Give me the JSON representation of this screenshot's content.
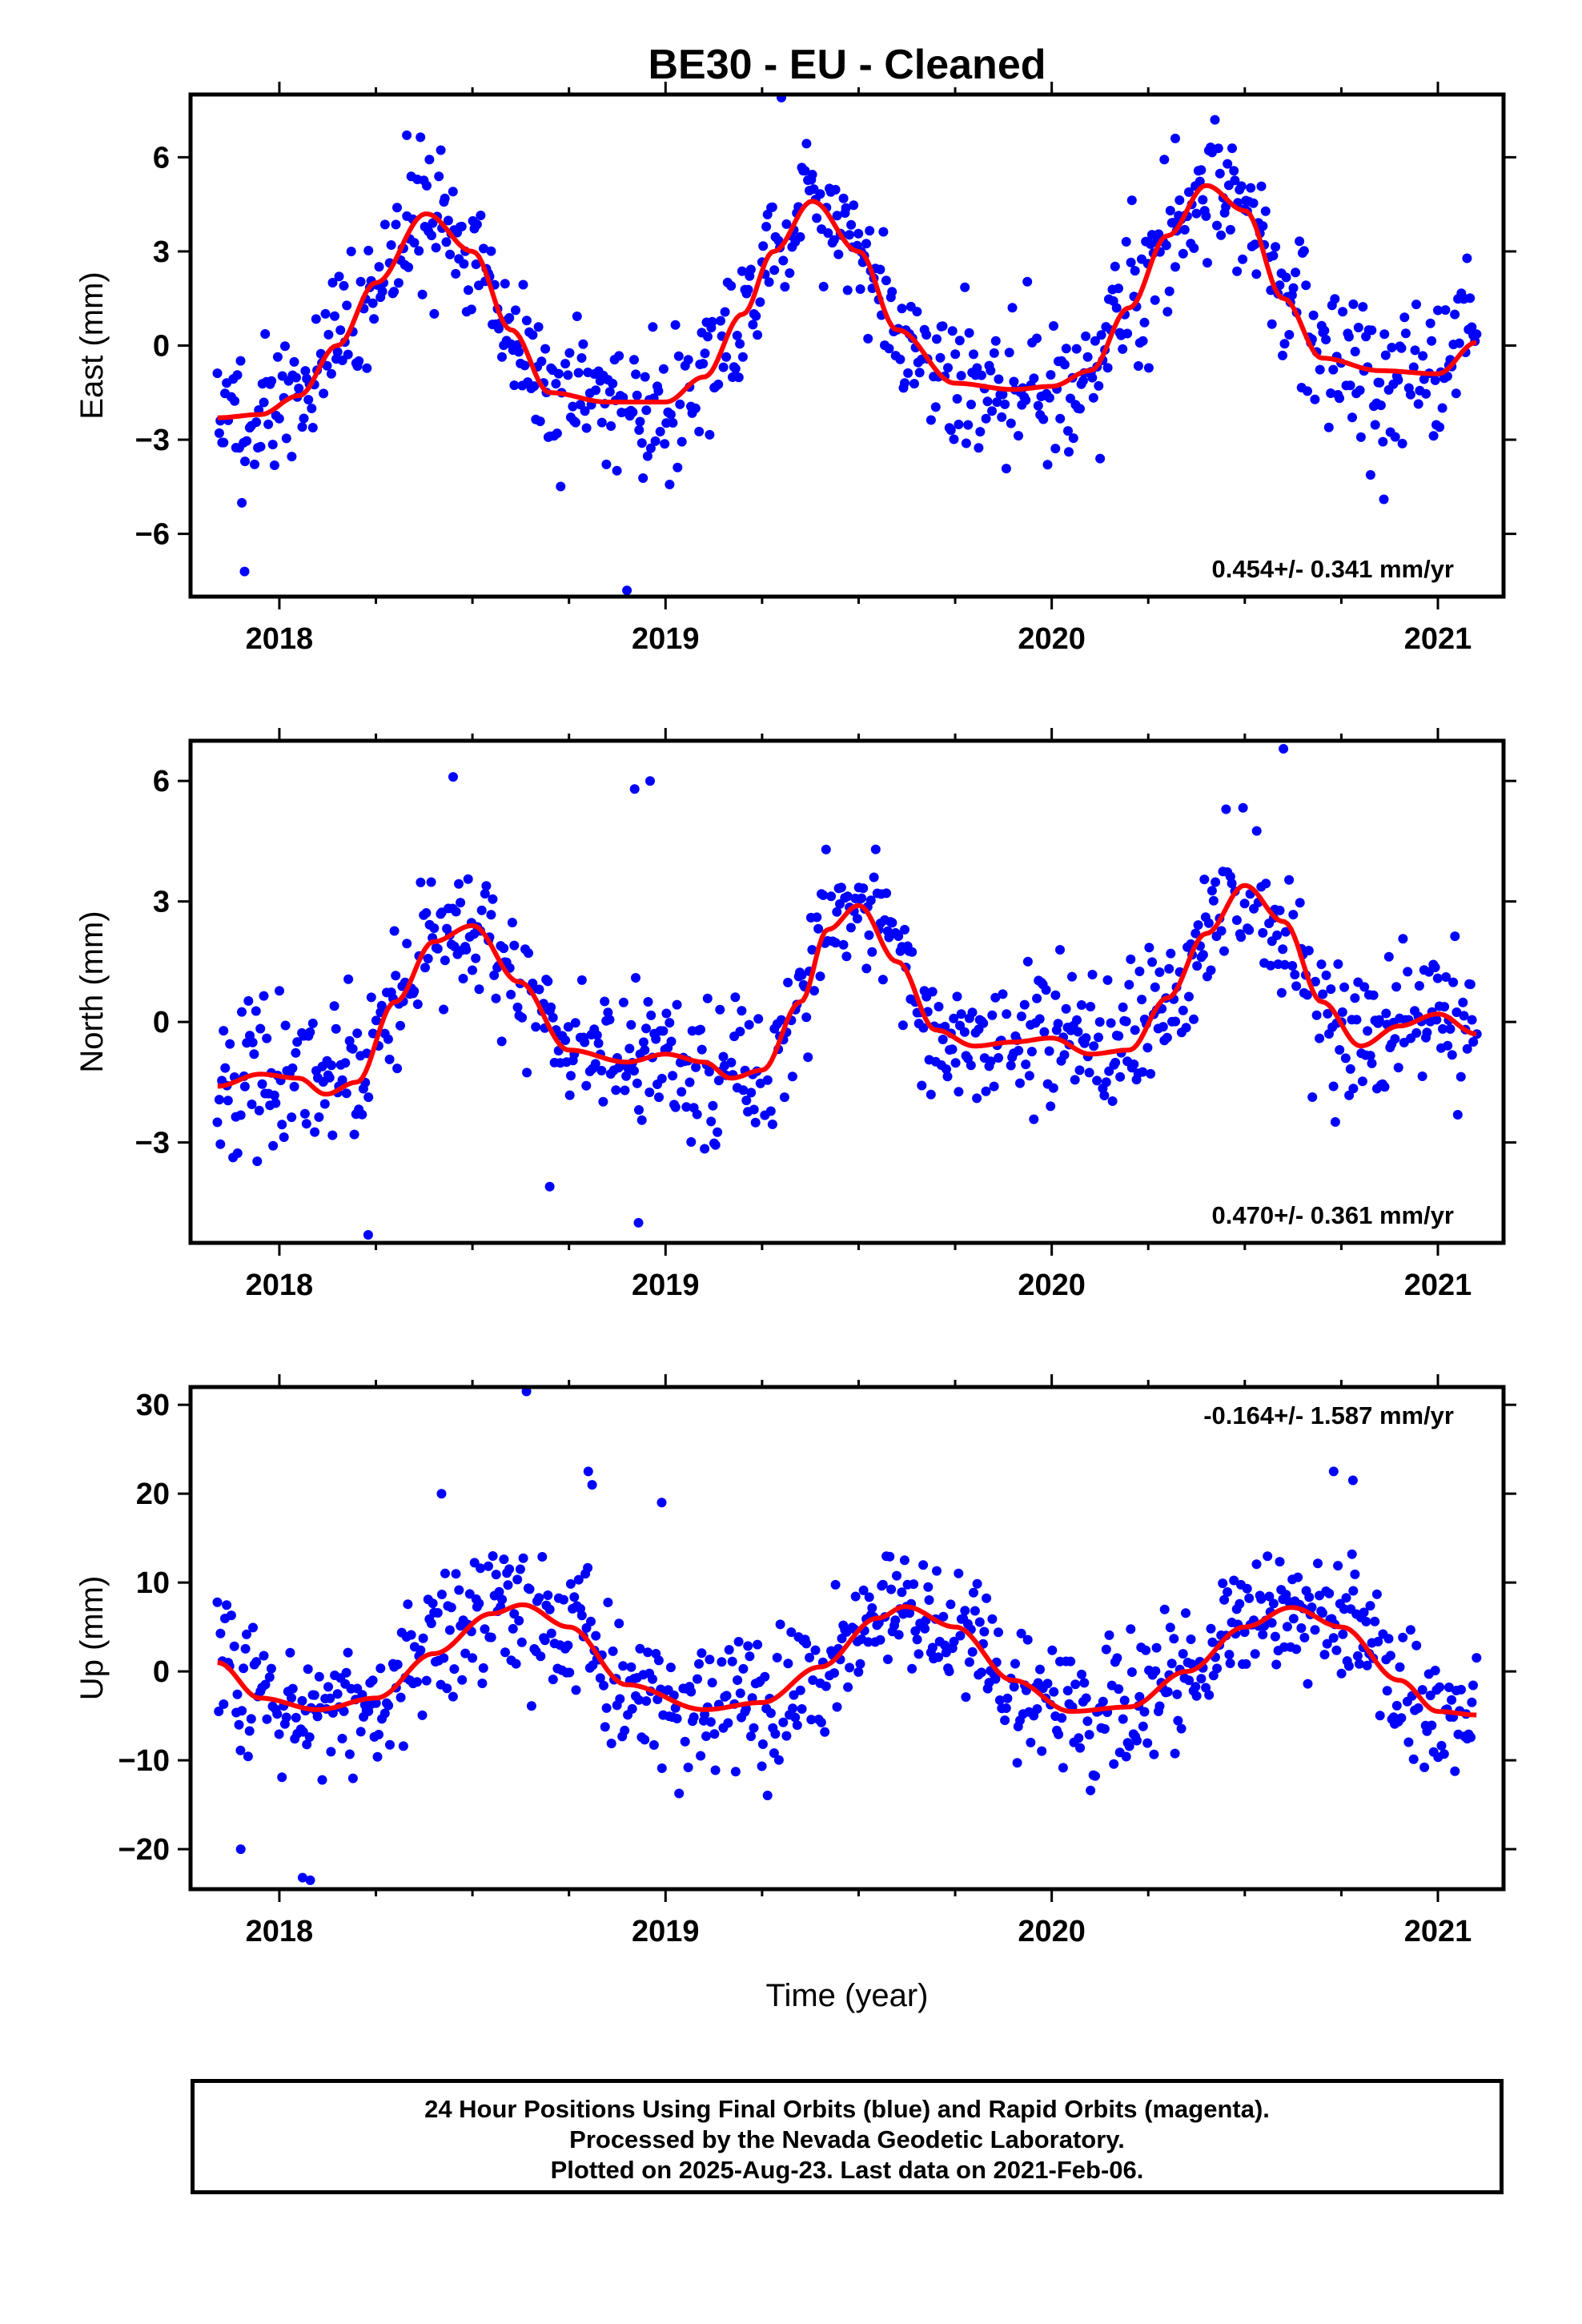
{
  "title": "BE30  - EU - Cleaned",
  "xlabel": "Time (year)",
  "footer": {
    "line1": "24 Hour Positions Using Final Orbits (blue) and Rapid Orbits (magenta).",
    "line2": "Processed by the Nevada Geodetic Laboratory.",
    "line3": "Plotted on 2025-Aug-23. Last data on 2021-Feb-06."
  },
  "colors": {
    "final_orbits": "#0000ff",
    "fit": "#ff0000",
    "axis": "#000000"
  },
  "chart_data": [
    {
      "type": "scatter",
      "ylabel": "East (mm)",
      "xlim": [
        2017.77,
        2021.17
      ],
      "ylim": [
        -8,
        8
      ],
      "xticks": [
        2018,
        2019,
        2020,
        2021
      ],
      "yticks": [
        -6,
        -3,
        0,
        3,
        6
      ],
      "rate_text": "0.454+/- 0.341 mm/yr",
      "rate_position": "bottom-right",
      "data_start": 2017.84,
      "data_end": 2021.1,
      "fit": {
        "x": [
          2017.84,
          2017.95,
          2018.05,
          2018.15,
          2018.25,
          2018.38,
          2018.5,
          2018.6,
          2018.7,
          2018.85,
          2019.0,
          2019.1,
          2019.2,
          2019.28,
          2019.38,
          2019.5,
          2019.6,
          2019.75,
          2019.9,
          2020.0,
          2020.1,
          2020.2,
          2020.3,
          2020.4,
          2020.5,
          2020.6,
          2020.7,
          2020.85,
          2021.0,
          2021.1
        ],
        "y": [
          -2.3,
          -2.2,
          -1.6,
          0.0,
          2.0,
          4.2,
          3.0,
          0.5,
          -1.5,
          -1.8,
          -1.8,
          -1.0,
          1.0,
          3.0,
          4.6,
          3.0,
          0.5,
          -1.2,
          -1.4,
          -1.3,
          -0.8,
          1.2,
          3.5,
          5.1,
          4.3,
          1.5,
          -0.4,
          -0.8,
          -0.9,
          0.1
        ]
      },
      "scatter_seed": 11,
      "scatter_noise_mm": 1.1,
      "outliers": {
        "x": [
          2017.91,
          2018.33,
          2019.3,
          2018.9,
          2020.86,
          2020.32
        ],
        "y": [
          -7.2,
          6.7,
          7.9,
          -7.8,
          -4.9,
          6.6
        ]
      }
    },
    {
      "type": "scatter",
      "ylabel": "North (mm)",
      "xlim": [
        2017.77,
        2021.17
      ],
      "ylim": [
        -5.5,
        7.0
      ],
      "xticks": [
        2018,
        2019,
        2020,
        2021
      ],
      "yticks": [
        -3,
        0,
        3,
        6
      ],
      "rate_text": "0.470+/- 0.361 mm/yr",
      "rate_position": "bottom-right",
      "data_start": 2017.84,
      "data_end": 2021.1,
      "fit": {
        "x": [
          2017.84,
          2017.95,
          2018.05,
          2018.12,
          2018.2,
          2018.3,
          2018.4,
          2018.5,
          2018.62,
          2018.75,
          2018.9,
          2019.0,
          2019.1,
          2019.17,
          2019.25,
          2019.35,
          2019.42,
          2019.5,
          2019.6,
          2019.7,
          2019.8,
          2019.9,
          2020.0,
          2020.1,
          2020.2,
          2020.3,
          2020.4,
          2020.5,
          2020.6,
          2020.7,
          2020.8,
          2020.9,
          2021.0,
          2021.1
        ],
        "y": [
          -1.6,
          -1.3,
          -1.4,
          -1.8,
          -1.5,
          0.5,
          2.0,
          2.4,
          1.0,
          -0.7,
          -1.0,
          -0.8,
          -1.0,
          -1.4,
          -1.2,
          0.5,
          2.3,
          2.9,
          1.5,
          -0.2,
          -0.6,
          -0.5,
          -0.4,
          -0.8,
          -0.7,
          0.6,
          2.2,
          3.4,
          2.5,
          0.5,
          -0.6,
          -0.1,
          0.2,
          -0.3
        ]
      },
      "scatter_seed": 23,
      "scatter_noise_mm": 0.85,
      "outliers": {
        "x": [
          2018.23,
          2018.92,
          2018.96,
          2018.45,
          2020.6,
          2018.93,
          2018.7
        ],
        "y": [
          -5.3,
          5.8,
          6.0,
          6.1,
          6.8,
          -5.0,
          -4.1
        ]
      }
    },
    {
      "type": "scatter",
      "ylabel": "Up (mm)",
      "xlim": [
        2017.77,
        2021.17
      ],
      "ylim": [
        -24.5,
        32
      ],
      "xticks": [
        2018,
        2019,
        2020,
        2021
      ],
      "yticks": [
        -20,
        -10,
        0,
        10,
        20,
        30
      ],
      "rate_text": "-0.164+/- 1.587 mm/yr",
      "rate_position": "top-right",
      "data_start": 2017.84,
      "data_end": 2021.1,
      "fit": {
        "x": [
          2017.84,
          2017.95,
          2018.1,
          2018.25,
          2018.4,
          2018.55,
          2018.63,
          2018.75,
          2018.9,
          2019.1,
          2019.25,
          2019.4,
          2019.55,
          2019.62,
          2019.75,
          2019.9,
          2020.05,
          2020.2,
          2020.35,
          2020.5,
          2020.62,
          2020.75,
          2020.9,
          2021.0,
          2021.1
        ],
        "y": [
          1.0,
          -3.0,
          -4.3,
          -3.0,
          2.0,
          6.5,
          7.5,
          5.0,
          -1.5,
          -4.3,
          -3.5,
          0.5,
          6.0,
          7.3,
          5.0,
          -1.0,
          -4.5,
          -4.0,
          0.0,
          5.0,
          7.2,
          5.0,
          -1.0,
          -4.5,
          -4.9
        ]
      },
      "scatter_seed": 37,
      "scatter_noise_mm": 3.6,
      "outliers": {
        "x": [
          2018.64,
          2018.8,
          2018.81,
          2017.9,
          2018.06,
          2018.08,
          2018.42,
          2020.73,
          2020.78,
          2018.99
        ],
        "y": [
          31.5,
          22.5,
          21.0,
          -20.0,
          -23.2,
          -23.5,
          20.0,
          22.5,
          21.5,
          19.0
        ]
      }
    }
  ]
}
